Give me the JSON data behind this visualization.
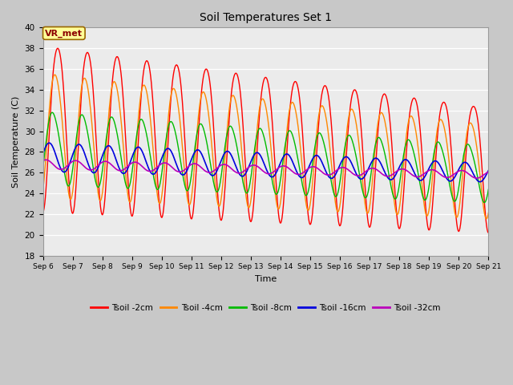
{
  "title": "Soil Temperatures Set 1",
  "xlabel": "Time",
  "ylabel": "Soil Temperature (C)",
  "ylim": [
    18,
    40
  ],
  "yticks": [
    18,
    20,
    22,
    24,
    26,
    28,
    30,
    32,
    34,
    36,
    38,
    40
  ],
  "colors": {
    "Tsoil -2cm": "#ff0000",
    "Tsoil -4cm": "#ff8800",
    "Tsoil -8cm": "#00bb00",
    "Tsoil -16cm": "#0000dd",
    "Tsoil -32cm": "#bb00bb"
  },
  "legend_labels": [
    "Tsoil -2cm",
    "Tsoil -4cm",
    "Tsoil -8cm",
    "Tsoil -16cm",
    "Tsoil -32cm"
  ],
  "fig_width": 6.4,
  "fig_height": 4.8,
  "dpi": 100
}
